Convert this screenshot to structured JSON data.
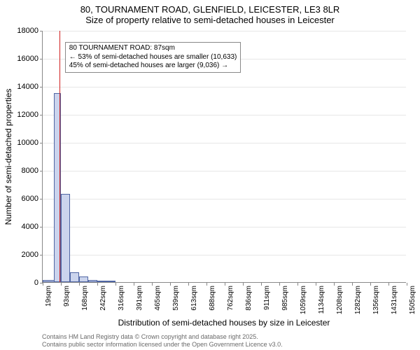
{
  "title": {
    "line1": "80, TOURNAMENT ROAD, GLENFIELD, LEICESTER, LE3 8LR",
    "line2": "Size of property relative to semi-detached houses in Leicester"
  },
  "chart": {
    "type": "histogram",
    "background_color": "#ffffff",
    "grid_color": "#e6e6e6",
    "axis_color": "#888888",
    "bar_fill": "#cbd4ed",
    "bar_border": "#5066a4",
    "marker_color": "#d01f1f",
    "ylabel": "Number of semi-detached properties",
    "xlabel": "Distribution of semi-detached houses by size in Leicester",
    "ylim": [
      0,
      18000
    ],
    "ytick_step": 2000,
    "yticks": [
      0,
      2000,
      4000,
      6000,
      8000,
      10000,
      12000,
      14000,
      16000,
      18000
    ],
    "xticks": [
      "19sqm",
      "93sqm",
      "168sqm",
      "242sqm",
      "316sqm",
      "391sqm",
      "465sqm",
      "539sqm",
      "613sqm",
      "688sqm",
      "762sqm",
      "836sqm",
      "911sqm",
      "985sqm",
      "1059sqm",
      "1134sqm",
      "1208sqm",
      "1282sqm",
      "1356sqm",
      "1431sqm",
      "1505sqm"
    ],
    "xrange": [
      19,
      1505
    ],
    "bins": [
      {
        "start": 19,
        "end": 93,
        "count": 150
      },
      {
        "start": 65,
        "end": 93,
        "count": 13500
      },
      {
        "start": 93,
        "end": 130,
        "count": 6300
      },
      {
        "start": 130,
        "end": 168,
        "count": 700
      },
      {
        "start": 168,
        "end": 205,
        "count": 400
      },
      {
        "start": 205,
        "end": 242,
        "count": 150
      },
      {
        "start": 242,
        "end": 279,
        "count": 50
      },
      {
        "start": 279,
        "end": 316,
        "count": 25
      }
    ],
    "marker_x": 87,
    "annotation": {
      "line1": "80 TOURNAMENT ROAD: 87sqm",
      "line2": "← 53% of semi-detached houses are smaller (10,633)",
      "line3": "45% of semi-detached houses are larger (9,036) →"
    },
    "label_fontsize": 12,
    "tick_fontsize": 11
  },
  "footer": {
    "line1": "Contains HM Land Registry data © Crown copyright and database right 2025.",
    "line2": "Contains public sector information licensed under the Open Government Licence v3.0."
  }
}
